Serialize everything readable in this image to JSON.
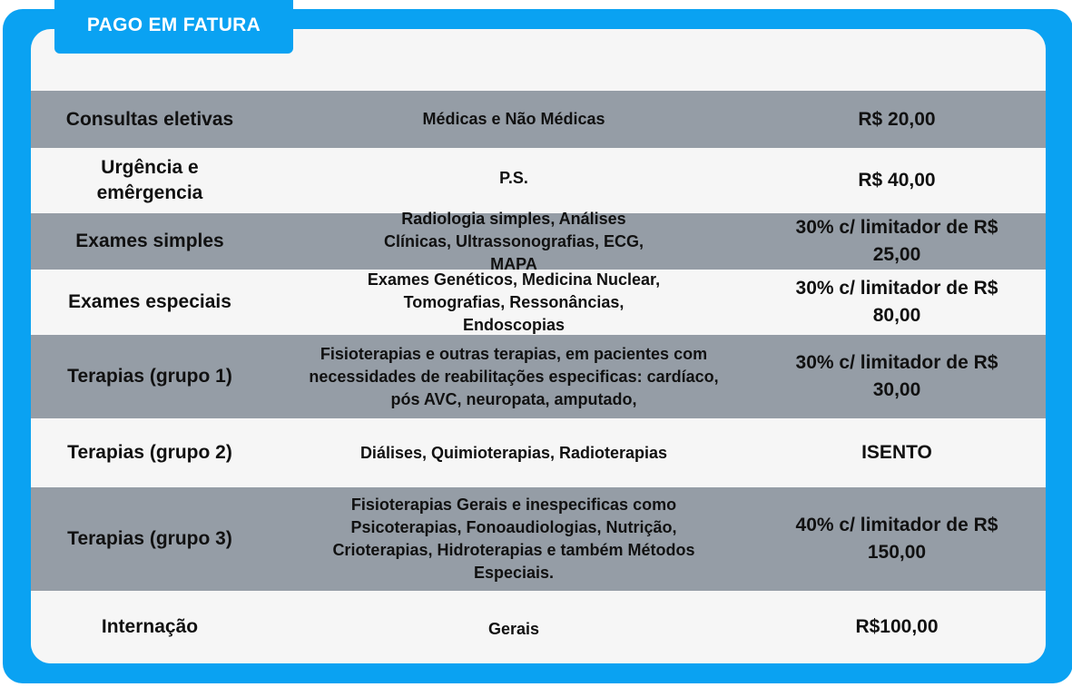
{
  "header": {
    "title": "PAGO EM FATURA"
  },
  "colors": {
    "accent": "#0aa2f2",
    "row_dark": "#959da6",
    "row_light": "#f6f6f6"
  },
  "rows": [
    {
      "category": "Consultas eletivas",
      "description": "Médicas e Não Médicas",
      "value": "R$ 20,00"
    },
    {
      "category": "Urgência e emêrgencia",
      "description": "P.S.",
      "value": "R$ 40,00"
    },
    {
      "category": "Exames simples",
      "description": "Radiologia simples, Análises Clínicas, Ultrassonografias, ECG, MAPA",
      "value": "30% c/ limitador de R$ 25,00"
    },
    {
      "category": "Exames especiais",
      "description": "Exames Genéticos, Medicina Nuclear, Tomografias, Ressonâncias, Endoscopias",
      "value": "30% c/ limitador de R$ 80,00"
    },
    {
      "category": "Terapias (grupo 1)",
      "description": "Fisioterapias e outras terapias, em pacientes com necessidades de reabilitações especificas: cardíaco, pós AVC, neuropata, amputado,",
      "value": "30% c/ limitador de R$ 30,00"
    },
    {
      "category": "Terapias (grupo 2)",
      "description": "Diálises, Quimioterapias, Radioterapias",
      "value": "ISENTO"
    },
    {
      "category": "Terapias (grupo 3)",
      "description": "Fisioterapias Gerais e inespecificas como Psicoterapias, Fonoaudiologias, Nutrição, Crioterapias, Hidroterapias e também Métodos Especiais.",
      "value": "40% c/ limitador de R$ 150,00"
    },
    {
      "category": "Internação",
      "description": "Gerais",
      "value": "R$100,00"
    }
  ]
}
